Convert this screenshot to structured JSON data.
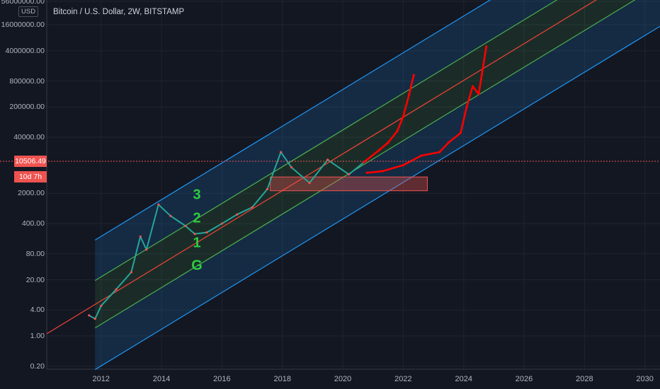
{
  "header": {
    "title": "Bitcoin / U.S. Dollar, 2W, BITSTAMP",
    "currency": "USD"
  },
  "price_tags": {
    "last_price": "10506.49",
    "countdown": "10d 7h"
  },
  "band_labels": [
    "3",
    "2",
    "1",
    "G"
  ],
  "colors": {
    "background": "#131722",
    "outer_channel": "#2196f3",
    "inner_channel": "#4caf50",
    "mid_line": "#f44336",
    "projection": "#ff0000",
    "label_green": "#2ecc40",
    "candle_up": "#26a69a",
    "candle_down": "#ef5350"
  },
  "chart_data": {
    "type": "line",
    "y_scale": "log",
    "x_ticks": [
      "2012",
      "2014",
      "2016",
      "2018",
      "2020",
      "2022",
      "2024",
      "2026",
      "2028",
      "2030"
    ],
    "y_ticks": [
      "56000000.00",
      "16000000.00",
      "4000000.00",
      "800000.00",
      "200000.00",
      "40000.00",
      "2000.00",
      "400.00",
      "80.00",
      "20.00",
      "4.00",
      "1.00",
      "0.20"
    ],
    "xlim": [
      2010.2,
      2030.5
    ],
    "ylim": [
      0.17,
      60000000
    ],
    "current_price": 10506.49,
    "channel": {
      "slope_log10_per_year": 0.425,
      "outer_upper_anchor": [
        2013.9,
        1300
      ],
      "inner_upper_anchor": [
        2013.9,
        150
      ],
      "mid_anchor": [
        2013.9,
        42
      ],
      "inner_lower_anchor": [
        2013.9,
        12
      ],
      "outer_lower_anchor": [
        2013.9,
        1.3
      ]
    },
    "support_zone": {
      "x": [
        2017.6,
        2022.8
      ],
      "y": [
        2300,
        4800
      ]
    },
    "series": [
      {
        "name": "",
        "values": [
          [
            2011.6,
            3
          ],
          [
            2011.8,
            2.5
          ],
          [
            2012.0,
            5
          ],
          [
            2012.5,
            12
          ],
          [
            2013.0,
            30
          ],
          [
            2013.3,
            200
          ],
          [
            2013.5,
            100
          ],
          [
            2013.9,
            1100
          ],
          [
            2014.3,
            600
          ],
          [
            2014.8,
            350
          ],
          [
            2015.1,
            230
          ],
          [
            2015.5,
            250
          ],
          [
            2016.0,
            400
          ],
          [
            2016.5,
            650
          ],
          [
            2017.0,
            950
          ],
          [
            2017.5,
            2500
          ],
          [
            2017.95,
            18000
          ],
          [
            2018.3,
            8000
          ],
          [
            2018.9,
            3500
          ],
          [
            2019.5,
            12000
          ],
          [
            2020.2,
            5500
          ],
          [
            2020.7,
            10506
          ]
        ]
      },
      {
        "name": "",
        "values": [
          [
            2020.7,
            10506
          ],
          [
            2021.2,
            20000
          ],
          [
            2021.5,
            30000
          ],
          [
            2021.8,
            55000
          ],
          [
            2022.0,
            120000
          ],
          [
            2022.2,
            400000
          ],
          [
            2022.35,
            1100000
          ]
        ]
      },
      {
        "name": "",
        "values": [
          [
            2020.8,
            6000
          ],
          [
            2021.3,
            6500
          ],
          [
            2022.0,
            9000
          ],
          [
            2022.6,
            15000
          ],
          [
            2023.2,
            18000
          ],
          [
            2023.5,
            30000
          ],
          [
            2023.9,
            50000
          ],
          [
            2024.1,
            200000
          ],
          [
            2024.3,
            600000
          ],
          [
            2024.5,
            400000
          ],
          [
            2024.6,
            1100000
          ],
          [
            2024.75,
            5000000
          ]
        ]
      }
    ]
  }
}
